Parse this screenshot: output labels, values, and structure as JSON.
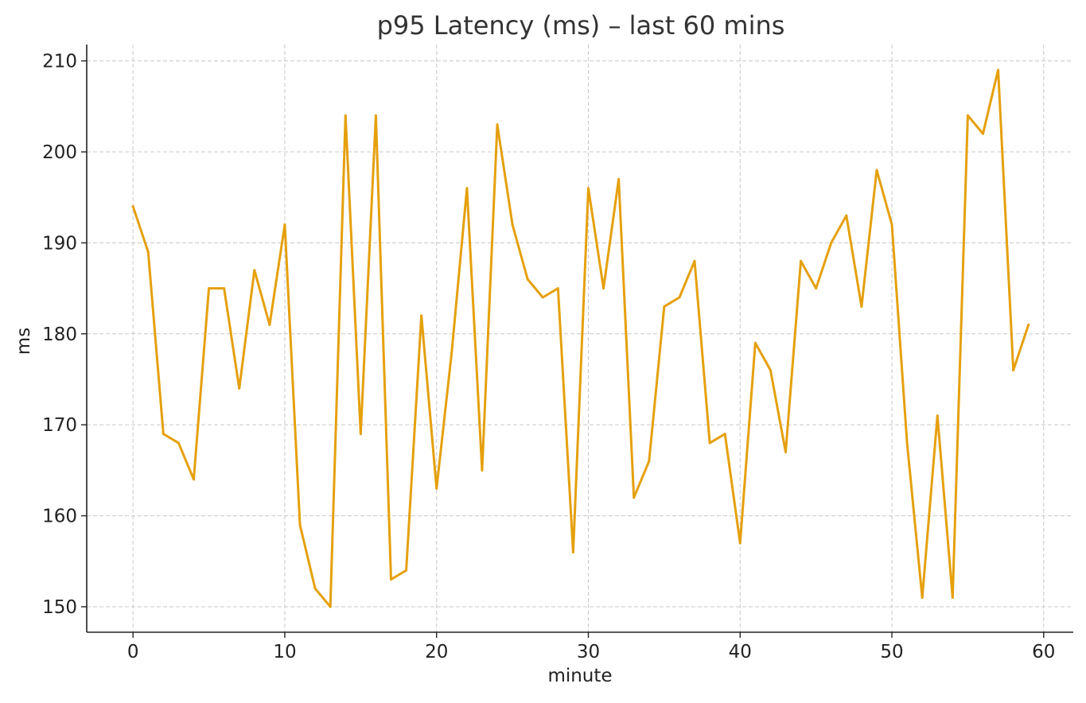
{
  "colors": {
    "series": "#E5A00D",
    "grid": "#c8c8c8",
    "axis": "#222222"
  },
  "chart_data": {
    "type": "line",
    "title": "p95 Latency (ms) – last 60 mins",
    "xlabel": "minute",
    "ylabel": "ms",
    "xlim": [
      -3.05,
      61.95
    ],
    "ylim": [
      147.2,
      211.8
    ],
    "x_ticks": [
      0,
      10,
      20,
      30,
      40,
      50,
      60
    ],
    "y_ticks": [
      150,
      160,
      170,
      180,
      190,
      200,
      210
    ],
    "grid": true,
    "legend": "none",
    "series": [
      {
        "x": [
          0,
          1,
          2,
          3,
          4,
          5,
          6,
          7,
          8,
          9,
          10,
          11,
          12,
          13,
          14,
          15,
          16,
          17,
          18,
          19,
          20,
          21,
          22,
          23,
          24,
          25,
          26,
          27,
          28,
          29,
          30,
          31,
          32,
          33,
          34,
          35,
          36,
          37,
          38,
          39,
          40,
          41,
          42,
          43,
          44,
          45,
          46,
          47,
          48,
          49,
          50,
          51,
          52,
          53,
          54,
          55,
          56,
          57,
          58,
          59
        ],
        "values": [
          194,
          189,
          169,
          168,
          164,
          185,
          185,
          174,
          187,
          181,
          192,
          159,
          152,
          150,
          204,
          169,
          204,
          153,
          154,
          182,
          163,
          178,
          196,
          165,
          203,
          192,
          186,
          184,
          185,
          156,
          196,
          185,
          197,
          162,
          166,
          183,
          184,
          188,
          168,
          169,
          157,
          179,
          176,
          167,
          188,
          185,
          190,
          193,
          183,
          198,
          192,
          168,
          151,
          171,
          151,
          204,
          202,
          209,
          176,
          181
        ]
      }
    ]
  }
}
